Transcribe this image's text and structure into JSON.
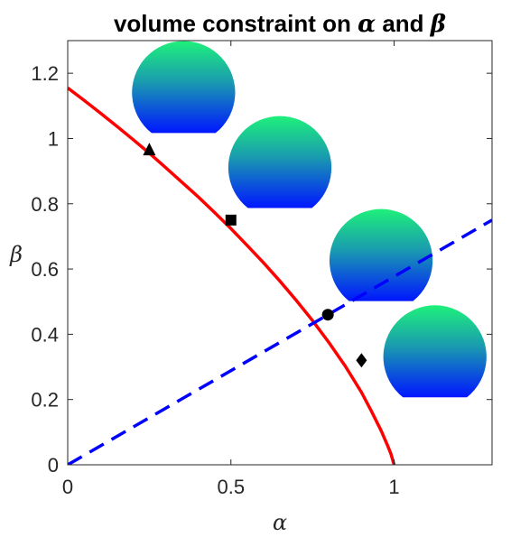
{
  "chart_data": {
    "type": "line",
    "title_parts": [
      "volume constraint on ",
      "α",
      " and ",
      "β"
    ],
    "xlabel": "α",
    "ylabel": "β",
    "xlim": [
      0,
      1.3
    ],
    "ylim": [
      0,
      1.3
    ],
    "xticks": [
      0,
      0.5,
      1
    ],
    "xtick_labels": [
      "0",
      "0.5",
      "1"
    ],
    "yticks": [
      0,
      0.2,
      0.4,
      0.6,
      0.8,
      1,
      1.2
    ],
    "ytick_labels": [
      "0",
      "0.2",
      "0.4",
      "0.6",
      "0.8",
      "1",
      "1.2"
    ],
    "grid": false,
    "legend": "none",
    "series": [
      {
        "style": "solid",
        "color": "#ff0000",
        "x": [
          0,
          0.05,
          0.1,
          0.15,
          0.2,
          0.25,
          0.3,
          0.35,
          0.4,
          0.45,
          0.5,
          0.55,
          0.6,
          0.65,
          0.7,
          0.75,
          0.8,
          0.85,
          0.9,
          0.93,
          0.96,
          0.98,
          0.99,
          1.0
        ],
        "y": [
          1.155,
          1.117,
          1.078,
          1.038,
          0.997,
          0.955,
          0.911,
          0.866,
          0.821,
          0.773,
          0.724,
          0.672,
          0.619,
          0.563,
          0.504,
          0.442,
          0.375,
          0.303,
          0.222,
          0.165,
          0.105,
          0.059,
          0.034,
          0
        ]
      },
      {
        "style": "dashed",
        "color": "#0000ff",
        "x": [
          0,
          1.3
        ],
        "y": [
          0,
          0.75
        ]
      }
    ],
    "markers": [
      {
        "shape": "triangle",
        "x": 0.25,
        "y": 0.965
      },
      {
        "shape": "square",
        "x": 0.5,
        "y": 0.75
      },
      {
        "shape": "circle",
        "x": 0.797,
        "y": 0.46
      },
      {
        "shape": "diamond",
        "x": 0.9,
        "y": 0.32
      }
    ],
    "droplet_images": [
      {
        "cx": 0.355,
        "cy": 1.14,
        "r": 0.158
      },
      {
        "cx": 0.65,
        "cy": 0.91,
        "r": 0.158
      },
      {
        "cx": 0.96,
        "cy": 0.625,
        "r": 0.158
      },
      {
        "cx": 1.125,
        "cy": 0.33,
        "r": 0.158
      }
    ],
    "colors": {
      "curve": "#ff0000",
      "dashed": "#0000ff",
      "droplet_top": "#1ef07a",
      "droplet_bottom": "#0016ff",
      "marker": "#000000"
    }
  }
}
